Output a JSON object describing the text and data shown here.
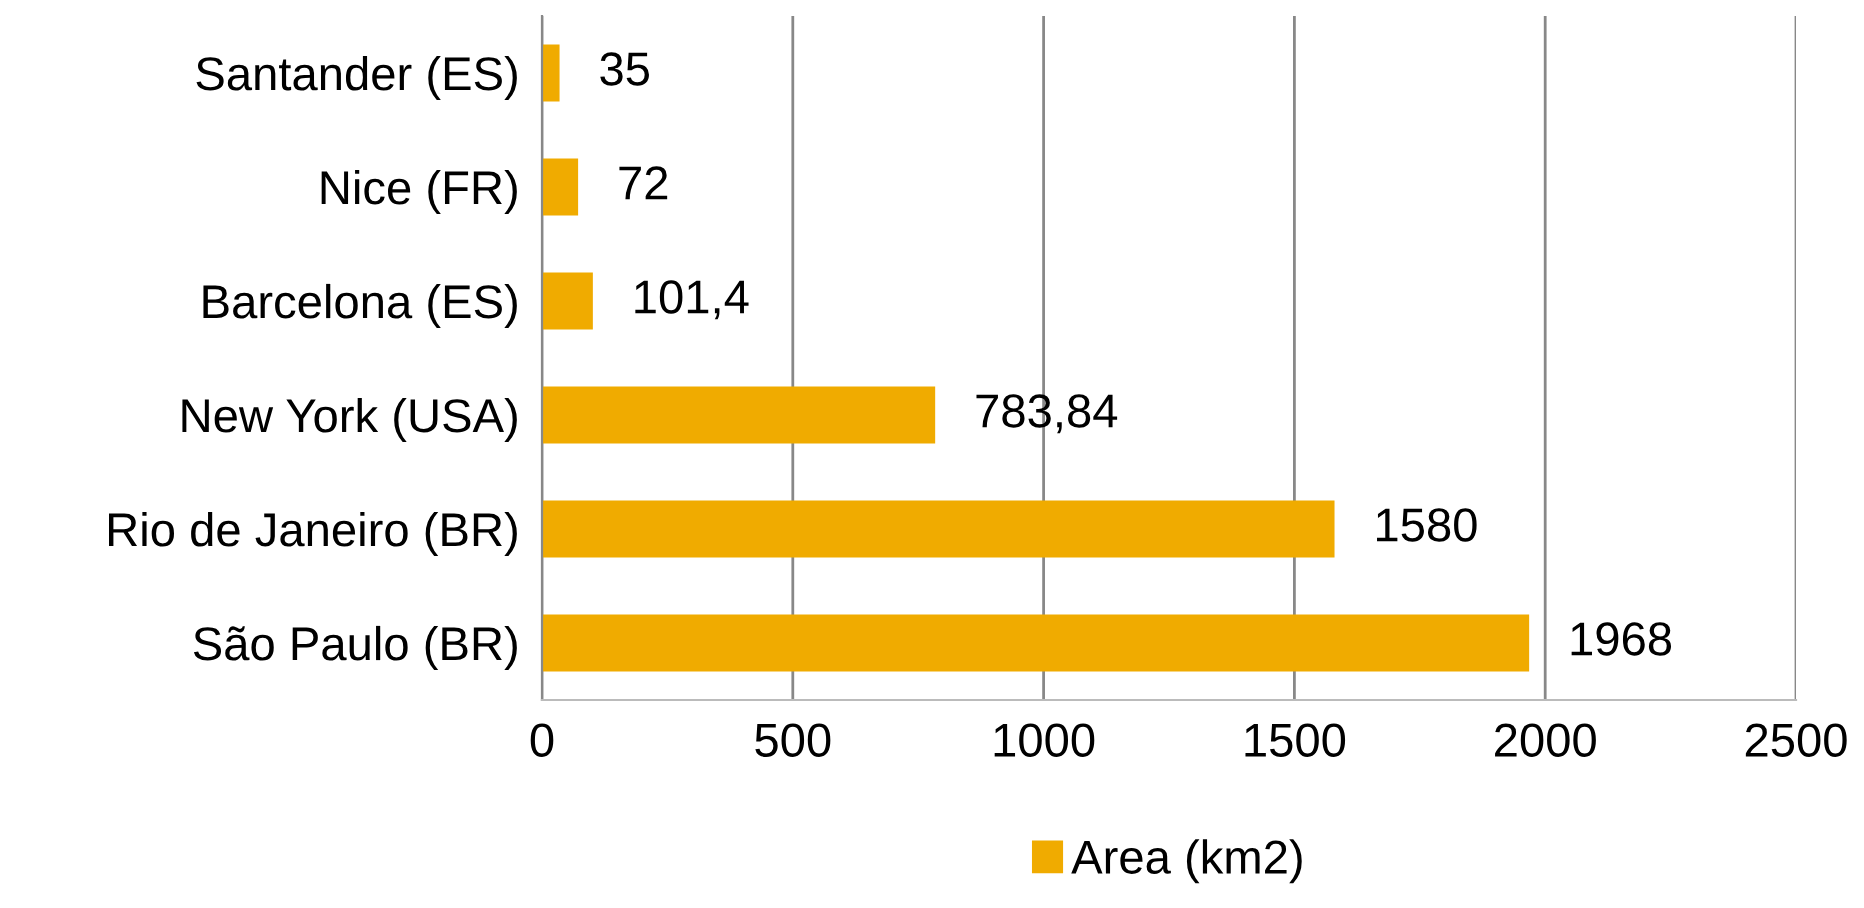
{
  "chart_data": {
    "type": "bar",
    "orientation": "horizontal",
    "categories": [
      "Santander (ES)",
      "Nice (FR)",
      "Barcelona (ES)",
      "New York (USA)",
      "Rio de Janeiro (BR)",
      "São Paulo (BR)"
    ],
    "series": [
      {
        "name": "Area (km2)",
        "color": "#f0ab00",
        "values": [
          35,
          72,
          101.4,
          783.84,
          1580,
          1968
        ],
        "value_labels": [
          "35",
          "72",
          "101,4",
          "783,84",
          "1580",
          "1968"
        ]
      }
    ],
    "xlim": [
      0,
      2500
    ],
    "xticks": [
      0,
      500,
      1000,
      1500,
      2000,
      2500
    ],
    "grid": "x",
    "legend": "bottom"
  }
}
